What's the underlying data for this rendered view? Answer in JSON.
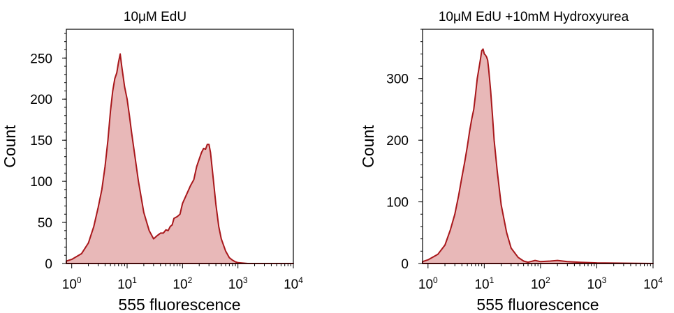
{
  "colors": {
    "line": "#a8171b",
    "fill": "#e8b8b8"
  },
  "chart_data": [
    {
      "type": "area",
      "title": "10μM EdU",
      "xlabel": "555 fluorescence",
      "ylabel": "Count",
      "x_scale": "log",
      "xlim": [
        0.8,
        10000
      ],
      "ylim": [
        0,
        285
      ],
      "xtick_values": [
        1,
        10,
        100,
        1000,
        10000
      ],
      "xtick_labels": [
        {
          "base": "10",
          "exp": "0"
        },
        {
          "base": "10",
          "exp": "1"
        },
        {
          "base": "10",
          "exp": "2"
        },
        {
          "base": "10",
          "exp": "3"
        },
        {
          "base": "10",
          "exp": "4"
        }
      ],
      "ytick_values": [
        0,
        50,
        100,
        150,
        200,
        250
      ],
      "ytick_labels": [
        "0",
        "50",
        "100",
        "150",
        "200",
        "250"
      ],
      "series": [
        {
          "x": [
            0.8,
            1.0,
            1.5,
            2.0,
            2.5,
            3.0,
            3.5,
            4.0,
            4.5,
            5.0,
            5.5,
            6.0,
            6.5,
            7.0,
            7.5,
            8.0,
            9.0,
            10.0,
            11.0,
            12.0,
            14.0,
            16.0,
            20.0,
            25.0,
            30.0,
            35.0,
            40.0,
            45.0,
            50.0,
            55.0,
            60.0,
            65.0,
            70.0,
            80.0,
            90.0,
            100,
            120,
            140,
            160,
            180,
            200,
            220,
            240,
            260,
            280,
            300,
            320,
            350,
            400,
            450,
            500,
            600,
            700,
            800,
            900,
            1000,
            1500,
            10000
          ],
          "y": [
            3,
            5,
            12,
            25,
            45,
            68,
            90,
            118,
            150,
            185,
            210,
            225,
            232,
            245,
            255,
            240,
            215,
            200,
            180,
            160,
            128,
            100,
            62,
            40,
            30,
            34,
            37,
            37,
            41,
            40,
            45,
            47,
            55,
            57,
            60,
            73,
            85,
            95,
            102,
            118,
            127,
            135,
            140,
            139,
            145,
            145,
            135,
            110,
            72,
            45,
            30,
            15,
            7,
            4,
            2,
            1,
            0,
            0
          ]
        }
      ]
    },
    {
      "type": "area",
      "title": "10μM EdU +10mM Hydroxyurea",
      "xlabel": "555 fluorescence",
      "ylabel": "Count",
      "x_scale": "log",
      "xlim": [
        0.8,
        10000
      ],
      "ylim": [
        0,
        380
      ],
      "xtick_values": [
        1,
        10,
        100,
        1000,
        10000
      ],
      "xtick_labels": [
        {
          "base": "10",
          "exp": "0"
        },
        {
          "base": "10",
          "exp": "1"
        },
        {
          "base": "10",
          "exp": "2"
        },
        {
          "base": "10",
          "exp": "3"
        },
        {
          "base": "10",
          "exp": "4"
        }
      ],
      "ytick_values": [
        0,
        100,
        200,
        300
      ],
      "ytick_labels": [
        "0",
        "100",
        "200",
        "300"
      ],
      "series": [
        {
          "x": [
            0.8,
            1.0,
            1.5,
            2.0,
            2.5,
            3.0,
            3.5,
            4.0,
            4.5,
            5.0,
            5.5,
            6.0,
            6.5,
            7.0,
            7.5,
            8.0,
            8.5,
            9.0,
            9.5,
            10.0,
            10.5,
            11.0,
            11.5,
            12.0,
            13.0,
            14.0,
            15.0,
            17.0,
            20.0,
            25.0,
            30.0,
            40.0,
            50.0,
            60.0,
            80.0,
            100,
            150,
            200,
            300,
            500,
            1000,
            10000
          ],
          "y": [
            3,
            6,
            15,
            30,
            55,
            80,
            110,
            140,
            165,
            190,
            215,
            235,
            250,
            275,
            300,
            315,
            330,
            345,
            348,
            340,
            338,
            335,
            330,
            315,
            280,
            240,
            200,
            150,
            95,
            50,
            25,
            10,
            4,
            2,
            5,
            3,
            4,
            5,
            3,
            2,
            1,
            0
          ]
        }
      ]
    }
  ]
}
